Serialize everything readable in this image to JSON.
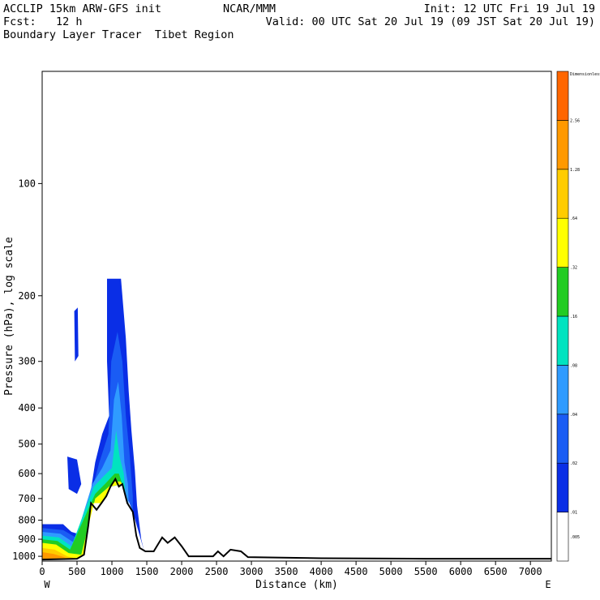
{
  "header": {
    "line1_left": "ACCLIP 15km ARW-GFS init",
    "line1_center": "NCAR/MMM",
    "line1_right": "Init: 12 UTC Fri 19 Jul 19",
    "line2_left": "Fcst:   12 h",
    "line2_right": "Valid: 00 UTC Sat 20 Jul 19 (09 JST Sat 20 Jul 19)",
    "line3_left": "Boundary Layer Tracer  Tibet Region"
  },
  "chart_data": {
    "type": "heatmap",
    "title": "Boundary Layer Tracer  Tibet Region",
    "xlabel": "Distance (km)",
    "ylabel": "Pressure (hPa), log scale",
    "x_direction_labels": [
      "W",
      "E"
    ],
    "xlim": [
      0,
      7300
    ],
    "ylim": [
      1030,
      50
    ],
    "y_scale": "log",
    "x_ticks": [
      0,
      500,
      1000,
      1500,
      2000,
      2500,
      3000,
      3500,
      4000,
      4500,
      5000,
      5500,
      6000,
      6500,
      7000
    ],
    "x_tick_labels": [
      "0",
      "500",
      "1000",
      "1500",
      "2000",
      "2500",
      "3000",
      "3500",
      "4000",
      "4500",
      "5000",
      "5500",
      "6000",
      "6500",
      "7000"
    ],
    "y_ticks": [
      100,
      200,
      300,
      400,
      500,
      600,
      700,
      800,
      900,
      1000
    ],
    "y_tick_labels": [
      "100",
      "200",
      "300",
      "400",
      "500",
      "600",
      "700",
      "800",
      "900",
      "1000"
    ],
    "colorbar": {
      "levels": [
        ".005",
        ".01",
        ".02",
        ".04",
        ".08",
        ".16",
        ".32",
        ".64",
        "1.28",
        "2.56",
        "Dimensionless"
      ],
      "colors": [
        "#ffffff",
        "#0a2ee6",
        "#1a5cf4",
        "#2f9bff",
        "#00e3c0",
        "#22cc22",
        "#ffff00",
        "#ffcc00",
        "#ff9900",
        "#ff6600"
      ]
    },
    "terrain_surface": [
      {
        "x": 0,
        "p": 1020
      },
      {
        "x": 500,
        "p": 1015
      },
      {
        "x": 600,
        "p": 990
      },
      {
        "x": 660,
        "p": 830
      },
      {
        "x": 700,
        "p": 720
      },
      {
        "x": 780,
        "p": 750
      },
      {
        "x": 850,
        "p": 720
      },
      {
        "x": 920,
        "p": 690
      },
      {
        "x": 980,
        "p": 650
      },
      {
        "x": 1050,
        "p": 620
      },
      {
        "x": 1100,
        "p": 650
      },
      {
        "x": 1150,
        "p": 640
      },
      {
        "x": 1220,
        "p": 720
      },
      {
        "x": 1300,
        "p": 760
      },
      {
        "x": 1350,
        "p": 880
      },
      {
        "x": 1400,
        "p": 950
      },
      {
        "x": 1480,
        "p": 970
      },
      {
        "x": 1600,
        "p": 970
      },
      {
        "x": 1720,
        "p": 890
      },
      {
        "x": 1800,
        "p": 920
      },
      {
        "x": 1900,
        "p": 890
      },
      {
        "x": 2000,
        "p": 940
      },
      {
        "x": 2100,
        "p": 1000
      },
      {
        "x": 2450,
        "p": 1000
      },
      {
        "x": 2520,
        "p": 970
      },
      {
        "x": 2600,
        "p": 1000
      },
      {
        "x": 2700,
        "p": 960
      },
      {
        "x": 2850,
        "p": 970
      },
      {
        "x": 2950,
        "p": 1005
      },
      {
        "x": 4000,
        "p": 1012
      },
      {
        "x": 5500,
        "p": 1015
      },
      {
        "x": 7300,
        "p": 1015
      }
    ],
    "tracer_regions": [
      {
        "level": ".01",
        "points": [
          [
            0,
            820
          ],
          [
            300,
            820
          ],
          [
            420,
            860
          ],
          [
            600,
            880
          ],
          [
            680,
            700
          ],
          [
            760,
            560
          ],
          [
            860,
            470
          ],
          [
            960,
            420
          ],
          [
            930,
            300
          ],
          [
            930,
            180
          ],
          [
            1130,
            180
          ],
          [
            1200,
            260
          ],
          [
            1240,
            360
          ],
          [
            1280,
            460
          ],
          [
            1330,
            590
          ],
          [
            1360,
            730
          ],
          [
            1420,
            900
          ],
          [
            1460,
            965
          ],
          [
            1300,
            760
          ],
          [
            1150,
            640
          ],
          [
            980,
            650
          ],
          [
            850,
            720
          ],
          [
            700,
            720
          ],
          [
            600,
            990
          ],
          [
            500,
            1015
          ],
          [
            0,
            1020
          ]
        ]
      },
      {
        "level": ".01",
        "points": [
          [
            360,
            540
          ],
          [
            500,
            550
          ],
          [
            560,
            640
          ],
          [
            500,
            680
          ],
          [
            380,
            660
          ]
        ]
      },
      {
        "level": ".01",
        "points": [
          [
            460,
            220
          ],
          [
            510,
            215
          ],
          [
            520,
            290
          ],
          [
            470,
            300
          ]
        ]
      },
      {
        "level": ".02",
        "points": [
          [
            0,
            840
          ],
          [
            300,
            850
          ],
          [
            480,
            890
          ],
          [
            580,
            930
          ],
          [
            700,
            680
          ],
          [
            820,
            560
          ],
          [
            950,
            470
          ],
          [
            990,
            300
          ],
          [
            1080,
            250
          ],
          [
            1150,
            300
          ],
          [
            1200,
            420
          ],
          [
            1250,
            520
          ],
          [
            1300,
            690
          ],
          [
            1300,
            760
          ],
          [
            1150,
            640
          ],
          [
            980,
            650
          ],
          [
            850,
            720
          ],
          [
            700,
            720
          ],
          [
            600,
            990
          ],
          [
            500,
            1015
          ],
          [
            0,
            1020
          ]
        ]
      },
      {
        "level": ".04",
        "points": [
          [
            0,
            860
          ],
          [
            260,
            870
          ],
          [
            460,
            920
          ],
          [
            720,
            640
          ],
          [
            860,
            580
          ],
          [
            980,
            520
          ],
          [
            1030,
            380
          ],
          [
            1090,
            340
          ],
          [
            1140,
            420
          ],
          [
            1180,
            560
          ],
          [
            1230,
            640
          ],
          [
            1240,
            730
          ],
          [
            1150,
            640
          ],
          [
            980,
            650
          ],
          [
            850,
            720
          ],
          [
            700,
            720
          ],
          [
            600,
            990
          ],
          [
            500,
            1015
          ],
          [
            0,
            1020
          ]
        ]
      },
      {
        "level": ".08",
        "points": [
          [
            0,
            880
          ],
          [
            240,
            890
          ],
          [
            420,
            940
          ],
          [
            740,
            650
          ],
          [
            880,
            610
          ],
          [
            1000,
            580
          ],
          [
            1060,
            460
          ],
          [
            1110,
            540
          ],
          [
            1170,
            600
          ],
          [
            1200,
            700
          ],
          [
            1150,
            640
          ],
          [
            980,
            650
          ],
          [
            850,
            720
          ],
          [
            700,
            720
          ],
          [
            600,
            990
          ],
          [
            500,
            1015
          ],
          [
            0,
            1020
          ]
        ]
      },
      {
        "level": ".16",
        "points": [
          [
            0,
            900
          ],
          [
            220,
            910
          ],
          [
            400,
            960
          ],
          [
            760,
            680
          ],
          [
            900,
            640
          ],
          [
            1040,
            600
          ],
          [
            1100,
            600
          ],
          [
            1160,
            650
          ],
          [
            1150,
            640
          ],
          [
            980,
            650
          ],
          [
            850,
            720
          ],
          [
            700,
            720
          ],
          [
            600,
            990
          ],
          [
            500,
            1015
          ],
          [
            0,
            1020
          ]
        ]
      },
      {
        "level": ".32",
        "points": [
          [
            0,
            920
          ],
          [
            200,
            930
          ],
          [
            380,
            980
          ],
          [
            560,
            990
          ],
          [
            760,
            700
          ],
          [
            920,
            660
          ],
          [
            1040,
            630
          ],
          [
            1120,
            630
          ],
          [
            1150,
            640
          ],
          [
            980,
            650
          ],
          [
            850,
            720
          ],
          [
            700,
            720
          ],
          [
            600,
            990
          ],
          [
            500,
            1015
          ],
          [
            0,
            1020
          ]
        ]
      },
      {
        "level": ".64",
        "points": [
          [
            0,
            950
          ],
          [
            180,
            960
          ],
          [
            360,
            1000
          ],
          [
            500,
            1015
          ],
          [
            0,
            1020
          ]
        ]
      },
      {
        "level": "1.28",
        "points": [
          [
            0,
            975
          ],
          [
            160,
            985
          ],
          [
            340,
            1008
          ],
          [
            0,
            1020
          ]
        ]
      }
    ]
  }
}
